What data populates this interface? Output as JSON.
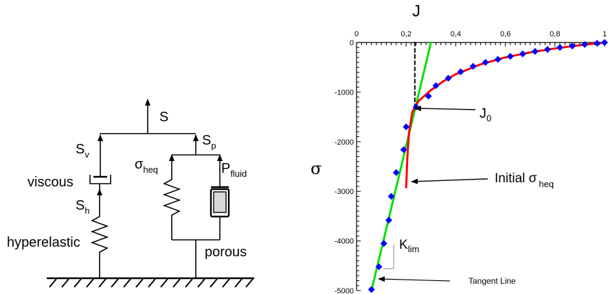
{
  "rheology_model": {
    "total_stress": "S",
    "viscous_stress": {
      "symbol": "S",
      "subscript": "v"
    },
    "porous_stress": {
      "symbol": "S",
      "subscript": "p"
    },
    "hyperelastic_stress": {
      "symbol": "S",
      "subscript": "h"
    },
    "equivalent_stress": {
      "symbol": "σ",
      "subscript": "heq"
    },
    "fluid_pressure": {
      "symbol": "P",
      "subscript": "fluid"
    },
    "viscous_label": "viscous",
    "hyperelastic_label": "hyperelastic",
    "porous_label": "porous"
  },
  "chart_data": {
    "type": "line",
    "xlabel": "J",
    "ylabel": "σ",
    "x_ticks": [
      "0",
      "0,2",
      "0,4",
      "0,6",
      "0,8",
      "1"
    ],
    "y_ticks": [
      "0",
      "-1000",
      "-2000",
      "-3000",
      "-4000",
      "-5000"
    ],
    "xlim": [
      0,
      1
    ],
    "ylim": [
      -5000,
      0
    ],
    "x_axis_position": "top",
    "series": [
      {
        "color": "#0000ff",
        "style": "markers",
        "points": [
          [
            0.06,
            -4980
          ],
          [
            0.09,
            -4520
          ],
          [
            0.11,
            -4050
          ],
          [
            0.13,
            -3580
          ],
          [
            0.14,
            -3100
          ],
          [
            0.16,
            -2620
          ],
          [
            0.19,
            -2160
          ],
          [
            0.2,
            -1700
          ],
          [
            0.24,
            -1300
          ],
          [
            0.29,
            -1080
          ],
          [
            0.32,
            -870
          ],
          [
            0.37,
            -720
          ],
          [
            0.42,
            -590
          ],
          [
            0.47,
            -480
          ],
          [
            0.52,
            -400
          ],
          [
            0.57,
            -340
          ],
          [
            0.62,
            -280
          ],
          [
            0.67,
            -230
          ],
          [
            0.72,
            -180
          ],
          [
            0.77,
            -140
          ],
          [
            0.82,
            -100
          ],
          [
            0.87,
            -70
          ],
          [
            0.92,
            -40
          ],
          [
            0.97,
            -15
          ],
          [
            1.0,
            0
          ]
        ]
      },
      {
        "color": "#ff0000",
        "style": "line",
        "points": [
          [
            0.2,
            -2920
          ],
          [
            0.205,
            -2300
          ],
          [
            0.212,
            -1800
          ],
          [
            0.225,
            -1400
          ],
          [
            0.25,
            -1180
          ],
          [
            0.3,
            -960
          ],
          [
            0.35,
            -780
          ],
          [
            0.4,
            -640
          ],
          [
            0.5,
            -440
          ],
          [
            0.6,
            -300
          ],
          [
            0.7,
            -200
          ],
          [
            0.8,
            -120
          ],
          [
            0.9,
            -55
          ],
          [
            0.97,
            -15
          ],
          [
            1.0,
            0
          ]
        ]
      },
      {
        "color": "#00e000",
        "style": "line",
        "points": [
          [
            0.06,
            -5000
          ],
          [
            0.3,
            0
          ]
        ]
      },
      {
        "color": "#000000",
        "style": "dashed",
        "points": [
          [
            0.235,
            0
          ],
          [
            0.235,
            -1300
          ]
        ]
      }
    ],
    "annotations": {
      "j0": {
        "symbol": "J",
        "subscript": "0"
      },
      "initial_sigma": {
        "text": "Initial σ",
        "subscript": "heq"
      },
      "k_lim": {
        "symbol": "K",
        "subscript": "lim"
      },
      "tangent_line": "Tangent Line"
    }
  }
}
